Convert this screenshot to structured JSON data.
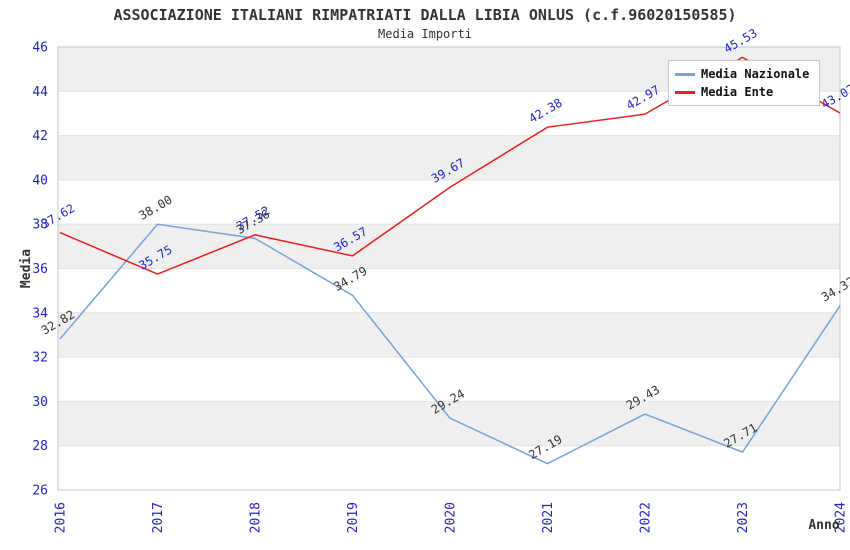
{
  "header": {
    "title": "ASSOCIAZIONE ITALIANI RIMPATRIATI DALLA LIBIA ONLUS (c.f.96020150585)",
    "subtitle": "Media Importi"
  },
  "chart_data": {
    "type": "line",
    "title": "ASSOCIAZIONE ITALIANI RIMPATRIATI DALLA LIBIA ONLUS (c.f.96020150585)",
    "subtitle": "Media Importi",
    "x": [
      "2016",
      "2017",
      "2018",
      "2019",
      "2020",
      "2021",
      "2022",
      "2023",
      "2024"
    ],
    "series": [
      {
        "name": "Media Nazionale",
        "color": "#75a3da",
        "label_color": "#333333",
        "values": [
          32.82,
          38.0,
          37.36,
          34.79,
          29.24,
          27.19,
          29.43,
          27.71,
          34.32
        ]
      },
      {
        "name": "Media Ente",
        "color": "#ee1c1c",
        "label_color": "#2222cc",
        "values": [
          37.62,
          35.75,
          37.52,
          36.57,
          39.67,
          42.38,
          42.97,
          45.53,
          43.02
        ]
      }
    ],
    "xlabel": "Anno",
    "ylabel": "Media",
    "ylim": [
      26,
      46
    ],
    "y_tick_step": 2,
    "y_ticks": [
      26,
      28,
      30,
      32,
      34,
      36,
      38,
      40,
      42,
      44,
      46
    ],
    "grid": "horizontal-bands",
    "band_color": "#efefef",
    "gridline_color": "#e3e3e3",
    "border_color": "#c6c6c6",
    "tick_label_color": "#2222cc",
    "axis_title_color": "#333333",
    "legend_position": "top-right"
  }
}
